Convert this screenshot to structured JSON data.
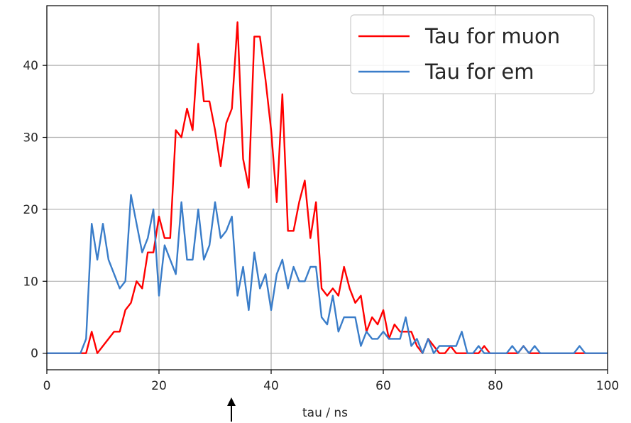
{
  "chart_data": {
    "type": "line",
    "title": "",
    "xlabel": "tau / ns",
    "ylabel": "",
    "xlim": [
      0,
      100
    ],
    "ylim": [
      -2.3,
      48.3
    ],
    "xticks": [
      0,
      20,
      40,
      60,
      80,
      100
    ],
    "yticks": [
      0,
      10,
      20,
      30,
      40
    ],
    "grid": true,
    "legend_position": "top-right",
    "series": [
      {
        "name": "Tau for muon",
        "color": "#ff0000",
        "x": [
          0,
          1,
          2,
          3,
          4,
          5,
          6,
          7,
          8,
          9,
          10,
          11,
          12,
          13,
          14,
          15,
          16,
          17,
          18,
          19,
          20,
          21,
          22,
          23,
          24,
          25,
          26,
          27,
          28,
          29,
          30,
          31,
          32,
          33,
          34,
          35,
          36,
          37,
          38,
          39,
          40,
          41,
          42,
          43,
          44,
          45,
          46,
          47,
          48,
          49,
          50,
          51,
          52,
          53,
          54,
          55,
          56,
          57,
          58,
          59,
          60,
          61,
          62,
          63,
          64,
          65,
          66,
          67,
          68,
          69,
          70,
          71,
          72,
          73,
          74,
          75,
          76,
          77,
          78,
          79,
          80,
          81,
          82,
          83,
          84,
          85,
          86,
          87,
          88,
          89,
          90,
          91,
          92,
          93,
          94,
          95,
          96,
          97,
          98,
          99,
          100
        ],
        "y": [
          0,
          0,
          0,
          0,
          0,
          0,
          0,
          0,
          3,
          0,
          1,
          2,
          3,
          3,
          6,
          7,
          10,
          9,
          14,
          14,
          19,
          16,
          16,
          31,
          30,
          34,
          31,
          43,
          35,
          35,
          31,
          26,
          32,
          34,
          46,
          27,
          23,
          44,
          44,
          38,
          31,
          21,
          36,
          17,
          17,
          21,
          24,
          16,
          21,
          9,
          8,
          9,
          8,
          12,
          9,
          7,
          8,
          3,
          5,
          4,
          6,
          2,
          4,
          3,
          3,
          3,
          1,
          0,
          2,
          1,
          0,
          0,
          1,
          0,
          0,
          0,
          0,
          0,
          1,
          0,
          0,
          0,
          0,
          0,
          0,
          1,
          0,
          0,
          0,
          0,
          0,
          0,
          0,
          0,
          0,
          0,
          0,
          0,
          0,
          0,
          0
        ]
      },
      {
        "name": "Tau for em",
        "color": "#3a7dc9",
        "x": [
          0,
          1,
          2,
          3,
          4,
          5,
          6,
          7,
          8,
          9,
          10,
          11,
          12,
          13,
          14,
          15,
          16,
          17,
          18,
          19,
          20,
          21,
          22,
          23,
          24,
          25,
          26,
          27,
          28,
          29,
          30,
          31,
          32,
          33,
          34,
          35,
          36,
          37,
          38,
          39,
          40,
          41,
          42,
          43,
          44,
          45,
          46,
          47,
          48,
          49,
          50,
          51,
          52,
          53,
          54,
          55,
          56,
          57,
          58,
          59,
          60,
          61,
          62,
          63,
          64,
          65,
          66,
          67,
          68,
          69,
          70,
          71,
          72,
          73,
          74,
          75,
          76,
          77,
          78,
          79,
          80,
          81,
          82,
          83,
          84,
          85,
          86,
          87,
          88,
          89,
          90,
          91,
          92,
          93,
          94,
          95,
          96,
          97,
          98,
          99,
          100
        ],
        "y": [
          0,
          0,
          0,
          0,
          0,
          0,
          0,
          2,
          18,
          13,
          18,
          13,
          11,
          9,
          10,
          22,
          18,
          14,
          16,
          20,
          8,
          15,
          13,
          11,
          21,
          13,
          13,
          20,
          13,
          15,
          21,
          16,
          17,
          19,
          8,
          12,
          6,
          14,
          9,
          11,
          6,
          11,
          13,
          9,
          12,
          10,
          10,
          12,
          12,
          5,
          4,
          8,
          3,
          5,
          5,
          5,
          1,
          3,
          2,
          2,
          3,
          2,
          2,
          2,
          5,
          1,
          2,
          0,
          2,
          0,
          1,
          1,
          1,
          1,
          3,
          0,
          0,
          1,
          0,
          0,
          0,
          0,
          0,
          1,
          0,
          1,
          0,
          1,
          0,
          0,
          0,
          0,
          0,
          0,
          0,
          1,
          0,
          0,
          0,
          0,
          0
        ]
      }
    ]
  }
}
